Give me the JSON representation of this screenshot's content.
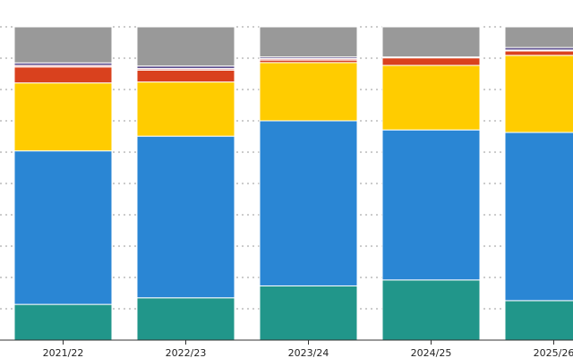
{
  "chart_data": {
    "type": "bar",
    "stacked": true,
    "normalized": true,
    "title": "",
    "xlabel": "",
    "ylabel": "",
    "ylim": [
      0,
      100
    ],
    "grid": "horizontal dotted",
    "legend": "none",
    "categories": [
      "2021/22",
      "2022/23",
      "2023/24",
      "2024/25",
      "2025/26"
    ],
    "series": [
      {
        "color": "#21968a",
        "values": [
          11.4,
          13.5,
          17.3,
          19.2,
          12.6
        ]
      },
      {
        "color": "#2a86d4",
        "values": [
          49.0,
          51.6,
          52.7,
          47.9,
          53.7
        ]
      },
      {
        "color": "#ffcc00",
        "values": [
          21.7,
          17.3,
          18.6,
          20.6,
          24.6
        ]
      },
      {
        "color": "#d9411e",
        "values": [
          5.1,
          3.8,
          0.8,
          2.4,
          1.4
        ]
      },
      {
        "color": "#f0a0a0",
        "values": [
          0.5,
          0.5,
          0.5,
          0.3,
          0.3
        ]
      },
      {
        "color": "#5c4e8e",
        "values": [
          0.8,
          0.8,
          0.5,
          0.0,
          0.8
        ]
      },
      {
        "color": "#999999",
        "values": [
          11.5,
          12.5,
          9.6,
          9.6,
          6.6
        ]
      }
    ]
  }
}
